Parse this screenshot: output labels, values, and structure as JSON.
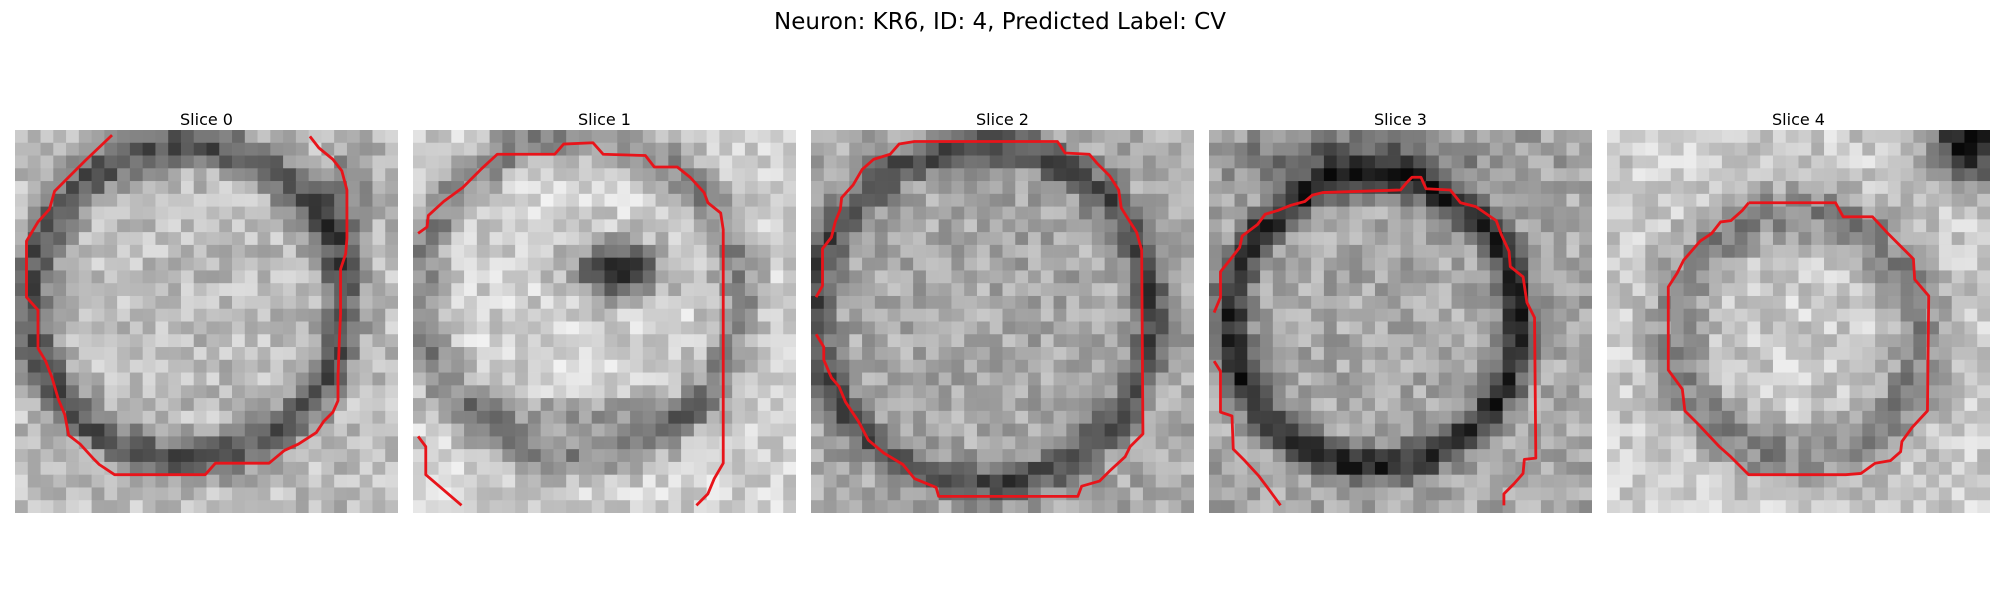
{
  "figure": {
    "title": "Neuron: KR6, ID: 4, Predicted Label: CV",
    "outline_color": "#e8141a"
  },
  "panels": [
    {
      "title": "Slice 0"
    },
    {
      "title": "Slice 1"
    },
    {
      "title": "Slice 2"
    },
    {
      "title": "Slice 3"
    },
    {
      "title": "Slice 4"
    }
  ]
}
